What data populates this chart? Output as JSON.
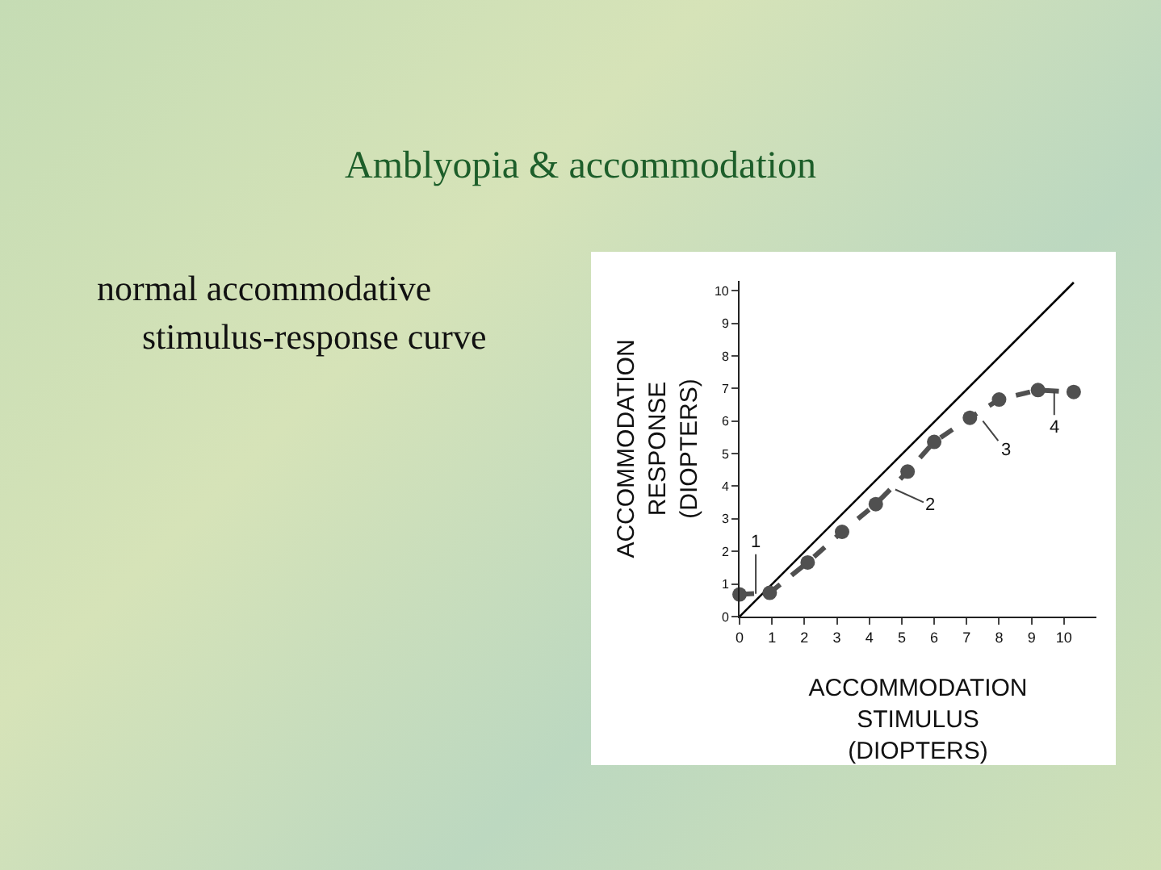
{
  "chart_data": {
    "type": "line",
    "title": "Amblyopia & accommodation",
    "xlabel": "ACCOMMODATION\nSTIMULUS\n(DIOPTERS)",
    "ylabel": "ACCOMMODATION\nRESPONSE\n(DIOPTERS)",
    "xlim": [
      0,
      11
    ],
    "ylim": [
      0,
      10.3
    ],
    "xticks": [
      0,
      1,
      2,
      3,
      4,
      5,
      6,
      7,
      8,
      9,
      10
    ],
    "yticks": [
      0,
      1,
      2,
      3,
      4,
      5,
      6,
      7,
      8,
      9,
      10
    ],
    "grid": false,
    "series": [
      {
        "color": "#000000",
        "line_style": "solid",
        "marker": "none",
        "x": [
          0,
          10.3
        ],
        "values": [
          0,
          10.25
        ]
      },
      {
        "color": "#505050",
        "line_style": "dashed",
        "marker": "circle",
        "x": [
          0,
          0.93,
          2.1,
          3.16,
          4.2,
          5.18,
          6.0,
          7.1,
          8.0,
          9.2,
          10.3
        ],
        "values": [
          0.68,
          0.73,
          1.66,
          2.6,
          3.45,
          4.45,
          5.36,
          6.1,
          6.66,
          6.95,
          6.89
        ]
      }
    ],
    "annotations": [
      "normal accommodative stimulus-response curve",
      {
        "text": "1",
        "x": 0.5,
        "y": 0.7
      },
      {
        "text": "2",
        "x": 4.8,
        "y": 3.9
      },
      {
        "text": "3",
        "x": 7.5,
        "y": 6.0
      },
      {
        "text": "4",
        "x": 9.7,
        "y": 6.9
      }
    ]
  }
}
